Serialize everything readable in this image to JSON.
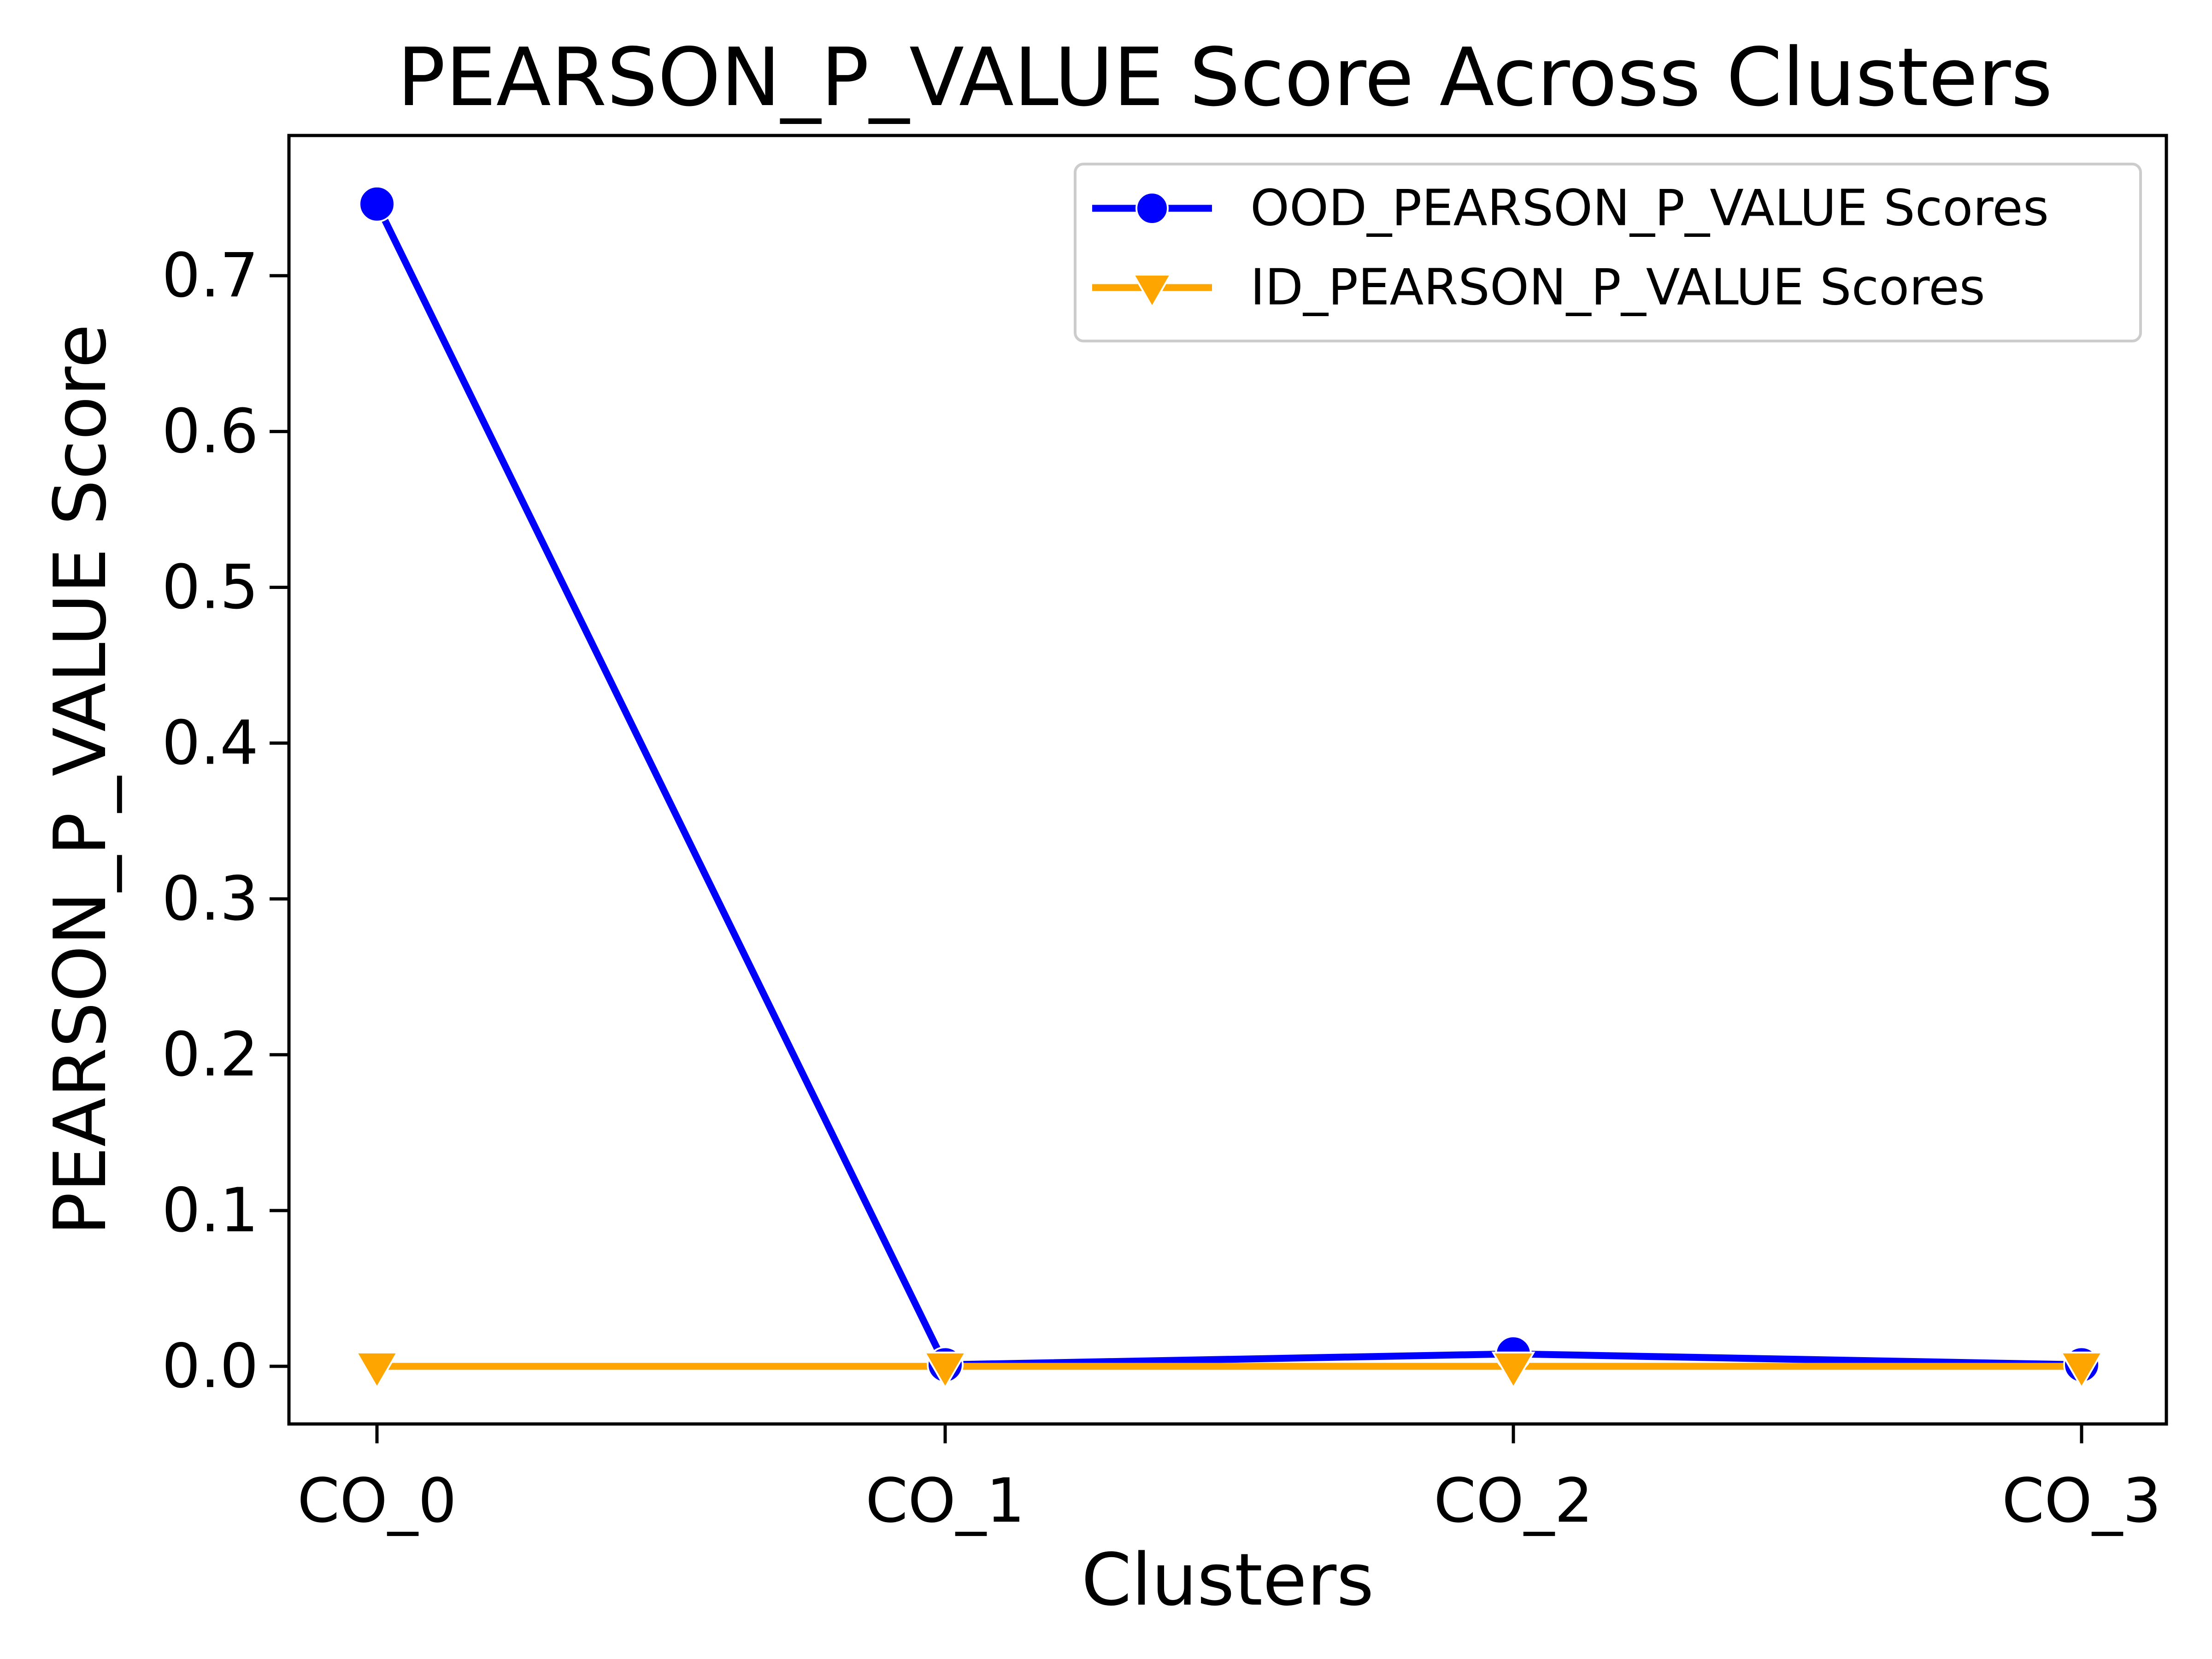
{
  "chart_data": {
    "type": "line",
    "title": "PEARSON_P_VALUE Score Across Clusters",
    "xlabel": "Clusters",
    "ylabel": "PEARSON_P_VALUE Score",
    "categories": [
      "CO_0",
      "CO_1",
      "CO_2",
      "CO_3"
    ],
    "ylim": [
      -0.037,
      0.79
    ],
    "yticks": [
      0.0,
      0.1,
      0.2,
      0.3,
      0.4,
      0.5,
      0.6,
      0.7
    ],
    "ytick_labels": [
      "0.0",
      "0.1",
      "0.2",
      "0.3",
      "0.4",
      "0.5",
      "0.6",
      "0.7"
    ],
    "grid": false,
    "legend_position": "top-right",
    "series": [
      {
        "name": "OOD_PEARSON_P_VALUE Scores",
        "color": "#0000ff",
        "marker": "circle",
        "values": [
          0.746,
          0.001,
          0.008,
          0.001
        ]
      },
      {
        "name": "ID_PEARSON_P_VALUE Scores",
        "color": "#ffa500",
        "marker": "triangle-down",
        "values": [
          0.0,
          0.0,
          0.0,
          0.0
        ]
      }
    ]
  }
}
